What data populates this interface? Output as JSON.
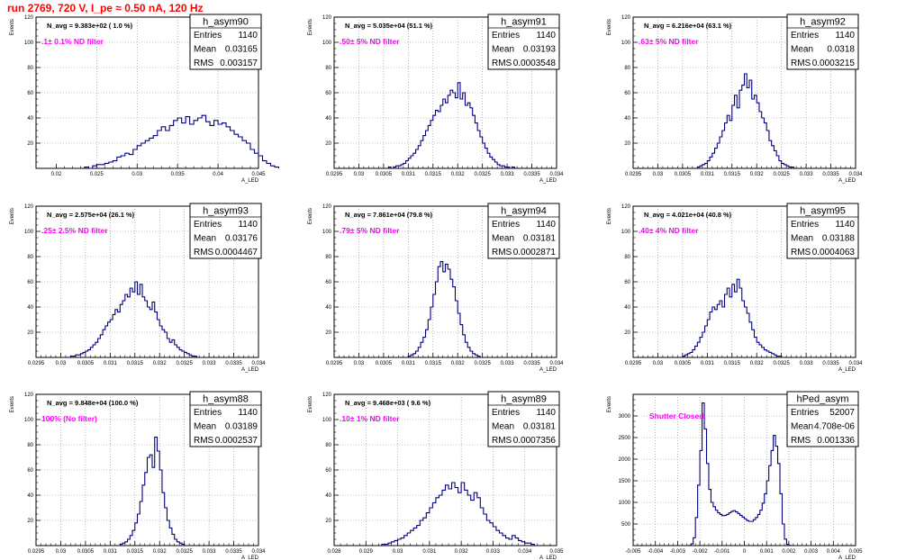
{
  "header": {
    "title": "run 2769,   720 V, I_pe ≈ 0.50 nA, 120 Hz",
    "title_color": "#ff0000"
  },
  "style": {
    "hist_color": "#000080",
    "filter_text_color": "#ff00ff",
    "grid_color": "#888888"
  },
  "stats_labels": {
    "entries": "Entries",
    "mean": "Mean",
    "rms": "RMS"
  },
  "chart_data": [
    {
      "type": "histogram",
      "name": "h_asym90",
      "entries": "1140",
      "mean": "0.03165",
      "rms": "0.003157",
      "navg": "N_avg = 9.383e+02 ( 1.0 %)",
      "filter": ".1± 0.1% ND filter",
      "ylabel": "Events",
      "xlabel": "A_LED",
      "xlim": [
        0.0175,
        0.045
      ],
      "ylim": [
        0,
        120
      ],
      "xticks": [
        0.02,
        0.025,
        0.03,
        0.035,
        0.04,
        0.045
      ],
      "xtick_labels": [
        "0.02",
        "0.025",
        "0.03",
        "0.035",
        "0.04",
        "0.045"
      ],
      "yticks": [
        0,
        20,
        40,
        60,
        80,
        100,
        120
      ],
      "ytick_labels": [
        "",
        "20",
        "40",
        "60",
        "80",
        "100",
        "120"
      ],
      "bin_start": 0.0235,
      "bin_width": 0.0005,
      "counts": [
        1,
        0,
        2,
        3,
        3,
        4,
        5,
        6,
        9,
        10,
        12,
        11,
        15,
        18,
        20,
        22,
        24,
        26,
        30,
        33,
        30,
        34,
        38,
        40,
        36,
        41,
        35,
        38,
        40,
        42,
        37,
        34,
        38,
        35,
        36,
        33,
        30,
        27,
        25,
        22,
        20,
        15,
        12,
        10,
        6,
        4,
        2,
        1
      ]
    },
    {
      "type": "histogram",
      "name": "h_asym91",
      "entries": "1140",
      "mean": "0.03193",
      "rms": "0.0003548",
      "navg": "N_avg = 5.035e+04 (51.1 %)",
      "filter": ".50± 5% ND filter",
      "ylabel": "Events",
      "xlabel": "A_LED",
      "xlim": [
        0.0295,
        0.034
      ],
      "ylim": [
        0,
        120
      ],
      "xticks": [
        0.0295,
        0.03,
        0.0305,
        0.031,
        0.0315,
        0.032,
        0.0325,
        0.033,
        0.0335,
        0.034
      ],
      "xtick_labels": [
        "0.0295",
        "0.03",
        "0.0305",
        "0.031",
        "0.0315",
        "0.032",
        "0.0325",
        "0.033",
        "0.0335",
        "0.034"
      ],
      "yticks": [
        0,
        20,
        40,
        60,
        80,
        100,
        120
      ],
      "ytick_labels": [
        "",
        "20",
        "40",
        "60",
        "80",
        "100",
        "120"
      ],
      "bin_start": 0.0306,
      "bin_width": 5e-05,
      "counts": [
        1,
        0,
        1,
        2,
        2,
        3,
        4,
        6,
        8,
        10,
        12,
        15,
        18,
        22,
        26,
        30,
        34,
        38,
        42,
        46,
        45,
        50,
        55,
        52,
        58,
        62,
        60,
        56,
        68,
        55,
        60,
        50,
        52,
        48,
        42,
        36,
        30,
        25,
        20,
        16,
        12,
        9,
        7,
        5,
        3,
        2,
        2,
        1,
        1,
        0,
        1
      ]
    },
    {
      "type": "histogram",
      "name": "h_asym92",
      "entries": "1140",
      "mean": "0.0318",
      "rms": "0.0003215",
      "navg": "N_avg = 6.216e+04 (63.1 %)",
      "filter": ".63± 5% ND filter",
      "ylabel": "Events",
      "xlabel": "A_LED",
      "xlim": [
        0.0295,
        0.034
      ],
      "ylim": [
        0,
        120
      ],
      "xticks": [
        0.0295,
        0.03,
        0.0305,
        0.031,
        0.0315,
        0.032,
        0.0325,
        0.033,
        0.0335,
        0.034
      ],
      "xtick_labels": [
        "0.0295",
        "0.03",
        "0.0305",
        "0.031",
        "0.0315",
        "0.032",
        "0.0325",
        "0.033",
        "0.0335",
        "0.034"
      ],
      "yticks": [
        0,
        20,
        40,
        60,
        80,
        100,
        120
      ],
      "ytick_labels": [
        "",
        "20",
        "40",
        "60",
        "80",
        "100",
        "120"
      ],
      "bin_start": 0.0308,
      "bin_width": 5e-05,
      "counts": [
        1,
        2,
        3,
        4,
        6,
        9,
        12,
        16,
        20,
        25,
        30,
        36,
        42,
        38,
        50,
        58,
        48,
        62,
        66,
        75,
        64,
        70,
        55,
        58,
        52,
        45,
        40,
        36,
        30,
        22,
        18,
        14,
        10,
        6,
        4,
        3,
        2,
        1,
        1
      ]
    },
    {
      "type": "histogram",
      "name": "h_asym93",
      "entries": "1140",
      "mean": "0.03176",
      "rms": "0.0004467",
      "navg": "N_avg = 2.575e+04 (26.1 %)",
      "filter": ".25± 2.5% ND filter",
      "ylabel": "Events",
      "xlabel": "A_LED",
      "xlim": [
        0.0295,
        0.034
      ],
      "ylim": [
        0,
        120
      ],
      "xticks": [
        0.0295,
        0.03,
        0.0305,
        0.031,
        0.0315,
        0.032,
        0.0325,
        0.033,
        0.0335,
        0.034
      ],
      "xtick_labels": [
        "0.0295",
        "0.03",
        "0.0305",
        "0.031",
        "0.0315",
        "0.032",
        "0.0325",
        "0.033",
        "0.0335",
        "0.034"
      ],
      "yticks": [
        0,
        20,
        40,
        60,
        80,
        100,
        120
      ],
      "ytick_labels": [
        "",
        "20",
        "40",
        "60",
        "80",
        "100",
        "120"
      ],
      "bin_start": 0.0302,
      "bin_width": 5e-05,
      "counts": [
        1,
        1,
        2,
        2,
        3,
        4,
        5,
        6,
        8,
        10,
        12,
        15,
        18,
        22,
        25,
        28,
        30,
        34,
        38,
        36,
        42,
        45,
        50,
        48,
        55,
        52,
        60,
        50,
        58,
        48,
        45,
        40,
        38,
        44,
        36,
        30,
        25,
        22,
        20,
        15,
        12,
        14,
        10,
        8,
        6,
        5,
        4,
        3,
        2,
        1,
        1
      ]
    },
    {
      "type": "histogram",
      "name": "h_asym94",
      "entries": "1140",
      "mean": "0.03181",
      "rms": "0.0002871",
      "navg": "N_avg = 7.861e+04 (79.8 %)",
      "filter": ".79± 5% ND filter",
      "ylabel": "Events",
      "xlabel": "A_LED",
      "xlim": [
        0.0295,
        0.034
      ],
      "ylim": [
        0,
        120
      ],
      "xticks": [
        0.0295,
        0.03,
        0.0305,
        0.031,
        0.0315,
        0.032,
        0.0325,
        0.033,
        0.0335,
        0.034
      ],
      "xtick_labels": [
        "0.0295",
        "0.03",
        "0.0305",
        "0.031",
        "0.0315",
        "0.032",
        "0.0325",
        "0.033",
        "0.0335",
        "0.034"
      ],
      "yticks": [
        0,
        20,
        40,
        60,
        80,
        100,
        120
      ],
      "ytick_labels": [
        "",
        "20",
        "40",
        "60",
        "80",
        "100",
        "120"
      ],
      "bin_start": 0.031,
      "bin_width": 5e-05,
      "counts": [
        1,
        2,
        3,
        5,
        8,
        12,
        16,
        22,
        30,
        40,
        50,
        60,
        72,
        76,
        68,
        74,
        70,
        62,
        56,
        45,
        35,
        26,
        18,
        12,
        8,
        5,
        3,
        2,
        1
      ]
    },
    {
      "type": "histogram",
      "name": "h_asym95",
      "entries": "1140",
      "mean": "0.03188",
      "rms": "0.0004063",
      "navg": "N_avg = 4.021e+04 (40.8 %)",
      "filter": ".40± 4% ND filter",
      "ylabel": "Events",
      "xlabel": "A_LED",
      "xlim": [
        0.0295,
        0.034
      ],
      "ylim": [
        0,
        120
      ],
      "xticks": [
        0.0295,
        0.03,
        0.0305,
        0.031,
        0.0315,
        0.032,
        0.0325,
        0.033,
        0.0335,
        0.034
      ],
      "xtick_labels": [
        "0.0295",
        "0.03",
        "0.0305",
        "0.031",
        "0.0315",
        "0.032",
        "0.0325",
        "0.033",
        "0.0335",
        "0.034"
      ],
      "yticks": [
        0,
        20,
        40,
        60,
        80,
        100,
        120
      ],
      "ytick_labels": [
        "",
        "20",
        "40",
        "60",
        "80",
        "100",
        "120"
      ],
      "bin_start": 0.0305,
      "bin_width": 5e-05,
      "counts": [
        1,
        2,
        3,
        4,
        6,
        9,
        12,
        16,
        20,
        25,
        30,
        36,
        40,
        38,
        42,
        45,
        40,
        50,
        55,
        48,
        58,
        52,
        62,
        55,
        45,
        40,
        35,
        28,
        22,
        16,
        12,
        10,
        8,
        6,
        5,
        4,
        3,
        2,
        1,
        1
      ]
    },
    {
      "type": "histogram",
      "name": "h_asym88",
      "entries": "1140",
      "mean": "0.03189",
      "rms": "0.0002537",
      "navg": "N_avg = 9.848e+04 (100.0 %)",
      "filter": "100% (No filter)",
      "ylabel": "Events",
      "xlabel": "A_LED",
      "xlim": [
        0.0295,
        0.034
      ],
      "ylim": [
        0,
        120
      ],
      "xticks": [
        0.0295,
        0.03,
        0.0305,
        0.031,
        0.0315,
        0.032,
        0.0325,
        0.033,
        0.0335,
        0.034
      ],
      "xtick_labels": [
        "0.0295",
        "0.03",
        "0.0305",
        "0.031",
        "0.0315",
        "0.032",
        "0.0325",
        "0.033",
        "0.0335",
        "0.034"
      ],
      "yticks": [
        0,
        20,
        40,
        60,
        80,
        100,
        120
      ],
      "ytick_labels": [
        "",
        "20",
        "40",
        "60",
        "80",
        "100",
        "120"
      ],
      "bin_start": 0.0312,
      "bin_width": 5e-05,
      "counts": [
        1,
        2,
        3,
        5,
        8,
        12,
        18,
        25,
        35,
        48,
        58,
        70,
        72,
        62,
        86,
        75,
        60,
        42,
        30,
        20,
        14,
        9,
        5,
        3,
        2,
        1
      ]
    },
    {
      "type": "histogram",
      "name": "h_asym89",
      "entries": "1140",
      "mean": "0.03181",
      "rms": "0.0007356",
      "navg": "N_avg = 9.468e+03 ( 9.6 %)",
      "filter": ".10± 1% ND filter",
      "ylabel": "Events",
      "xlabel": "A_LED",
      "xlim": [
        0.028,
        0.035
      ],
      "ylim": [
        0,
        120
      ],
      "xticks": [
        0.028,
        0.029,
        0.03,
        0.031,
        0.032,
        0.033,
        0.034,
        0.035
      ],
      "xtick_labels": [
        "0.028",
        "0.029",
        "0.03",
        "0.031",
        "0.032",
        "0.033",
        "0.034",
        "0.035"
      ],
      "yticks": [
        0,
        20,
        40,
        60,
        80,
        100,
        120
      ],
      "ytick_labels": [
        "",
        "20",
        "40",
        "60",
        "80",
        "100",
        "120"
      ],
      "bin_start": 0.0295,
      "bin_width": 0.0001,
      "counts": [
        1,
        1,
        2,
        3,
        4,
        5,
        6,
        8,
        10,
        12,
        14,
        16,
        20,
        22,
        26,
        30,
        34,
        38,
        40,
        44,
        48,
        45,
        50,
        46,
        42,
        50,
        44,
        40,
        36,
        42,
        38,
        30,
        25,
        20,
        18,
        15,
        12,
        10,
        8,
        6,
        5,
        8,
        6,
        4,
        3,
        2,
        2,
        1
      ]
    },
    {
      "type": "histogram",
      "name": "hPed_asym",
      "entries": "52007",
      "mean": "4.708e-06",
      "rms": "0.001336",
      "navg": "",
      "filter": "Shutter Closed",
      "ylabel": "Events",
      "xlabel": "A_LED",
      "xlim": [
        -0.005,
        0.005
      ],
      "ylim": [
        0,
        3500
      ],
      "xticks": [
        -0.005,
        -0.004,
        -0.003,
        -0.002,
        -0.001,
        0,
        0.001,
        0.002,
        0.003,
        0.004,
        0.005
      ],
      "xtick_labels": [
        "-0.005",
        "-0.004",
        "-0.003",
        "-0.002",
        "-0.001",
        "0",
        "0.001",
        "0.002",
        "0.003",
        "0.004",
        "0.005"
      ],
      "yticks": [
        0,
        500,
        1000,
        1500,
        2000,
        2500,
        3000,
        3500
      ],
      "ytick_labels": [
        "",
        "500",
        "1000",
        "1500",
        "2000",
        "2500",
        "3000",
        ""
      ],
      "bin_start": -0.0025,
      "bin_width": 0.0001,
      "counts": [
        5,
        40,
        180,
        650,
        1400,
        2200,
        3300,
        2700,
        1900,
        1300,
        1000,
        900,
        820,
        760,
        720,
        690,
        700,
        720,
        760,
        790,
        810,
        780,
        740,
        700,
        660,
        620,
        580,
        560,
        560,
        600,
        650,
        720,
        820,
        980,
        1200,
        1500,
        1850,
        2200,
        2550,
        2300,
        1900,
        1200,
        500,
        150,
        30,
        5
      ]
    }
  ]
}
